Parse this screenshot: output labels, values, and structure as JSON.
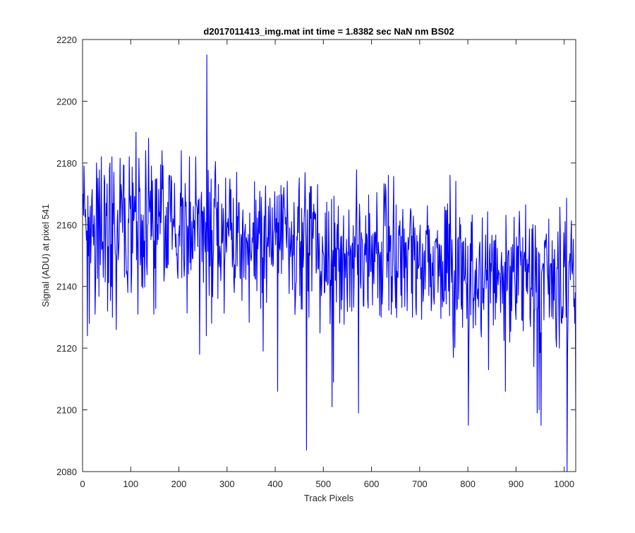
{
  "chart_data": {
    "type": "line",
    "title": "d2017011413_img.mat int time = 1.8382 sec  NaN nm BS02",
    "xlabel": "Track Pixels",
    "ylabel": "Signal (ADU) at pixel 541",
    "xlim": [
      0,
      1024
    ],
    "ylim": [
      2080,
      2220
    ],
    "xticks": [
      0,
      100,
      200,
      300,
      400,
      500,
      600,
      700,
      800,
      900,
      1000
    ],
    "yticks": [
      2080,
      2100,
      2120,
      2140,
      2160,
      2180,
      2200,
      2220
    ],
    "grid": false,
    "line_color": "#0000ff",
    "series": [
      {
        "x_start": 1,
        "x_step": 1,
        "approx_points": 1024,
        "trend": "starts near 2162-2165 and slowly decreases to about 2140 at the right edge; noise band roughly plus/minus 15 ADU",
        "anchor_points": [
          [
            1,
            2170
          ],
          [
            3,
            2179
          ],
          [
            6,
            2165
          ],
          [
            10,
            2124
          ],
          [
            14,
            2128
          ],
          [
            19,
            2168
          ],
          [
            22,
            2160
          ],
          [
            26,
            2131
          ],
          [
            29,
            2180
          ],
          [
            36,
            2166
          ],
          [
            40,
            2152
          ],
          [
            45,
            2176
          ],
          [
            52,
            2132
          ],
          [
            57,
            2180
          ],
          [
            62,
            2130
          ],
          [
            65,
            2177
          ],
          [
            70,
            2126
          ],
          [
            82,
            2167
          ],
          [
            92,
            2145
          ],
          [
            101,
            2138
          ],
          [
            107,
            2162
          ],
          [
            111,
            2190
          ],
          [
            115,
            2131
          ],
          [
            123,
            2140
          ],
          [
            131,
            2184
          ],
          [
            137,
            2188
          ],
          [
            143,
            2179
          ],
          [
            148,
            2131
          ],
          [
            156,
            2160
          ],
          [
            165,
            2184
          ],
          [
            173,
            2146
          ],
          [
            180,
            2176
          ],
          [
            195,
            2150
          ],
          [
            205,
            2184
          ],
          [
            220,
            2144
          ],
          [
            240,
            2168
          ],
          [
            243,
            2118
          ],
          [
            250,
            2164
          ],
          [
            257,
            2124
          ],
          [
            258,
            2215
          ],
          [
            262,
            2150
          ],
          [
            275,
            2177
          ],
          [
            290,
            2154
          ],
          [
            305,
            2170
          ],
          [
            315,
            2138
          ],
          [
            320,
            2177
          ],
          [
            343,
            2147
          ],
          [
            360,
            2168
          ],
          [
            375,
            2119
          ],
          [
            386,
            2166
          ],
          [
            402,
            2162
          ],
          [
            405,
            2106
          ],
          [
            420,
            2165
          ],
          [
            435,
            2150
          ],
          [
            451,
            2137
          ],
          [
            465,
            2087
          ],
          [
            470,
            2130
          ],
          [
            478,
            2164
          ],
          [
            496,
            2137
          ],
          [
            515,
            2142
          ],
          [
            518,
            2101
          ],
          [
            521,
            2109
          ],
          [
            540,
            2148
          ],
          [
            560,
            2154
          ],
          [
            573,
            2099
          ],
          [
            590,
            2157
          ],
          [
            607,
            2148
          ],
          [
            620,
            2130
          ],
          [
            635,
            2176
          ],
          [
            650,
            2133
          ],
          [
            665,
            2165
          ],
          [
            685,
            2130
          ],
          [
            700,
            2156
          ],
          [
            719,
            2137
          ],
          [
            735,
            2155
          ],
          [
            750,
            2135
          ],
          [
            763,
            2176
          ],
          [
            770,
            2117
          ],
          [
            785,
            2160
          ],
          [
            801,
            2095
          ],
          [
            810,
            2146
          ],
          [
            820,
            2136
          ],
          [
            840,
            2142
          ],
          [
            843,
            2113
          ],
          [
            860,
            2137
          ],
          [
            878,
            2106
          ],
          [
            895,
            2145
          ],
          [
            916,
            2148
          ],
          [
            930,
            2127
          ],
          [
            937,
            2114
          ],
          [
            944,
            2099
          ],
          [
            948,
            2100
          ],
          [
            952,
            2095
          ],
          [
            960,
            2155
          ],
          [
            970,
            2134
          ],
          [
            980,
            2152
          ],
          [
            990,
            2120
          ],
          [
            1002,
            2161
          ],
          [
            1004,
            2130
          ],
          [
            1006,
            2080
          ],
          [
            1010,
            2148
          ],
          [
            1017,
            2144
          ],
          [
            1021,
            2136
          ],
          [
            1024,
            2097
          ]
        ]
      }
    ]
  }
}
